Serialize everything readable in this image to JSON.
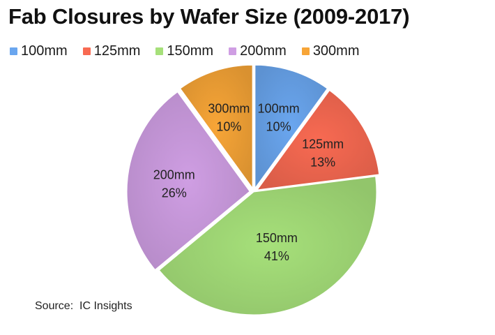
{
  "title": "Fab Closures by Wafer Size (2009-2017)",
  "source_note": "Source:  IC Insights",
  "colors": {
    "100mm": "#6aa6ef",
    "125mm": "#f86a52",
    "150mm": "#a6e07a",
    "200mm": "#cf9ee3",
    "300mm": "#f7a537"
  },
  "chart_data": {
    "type": "pie",
    "title": "Fab Closures by Wafer Size (2009-2017)",
    "legend_position": "top",
    "slices": [
      {
        "label": "100mm",
        "value": 10,
        "pct_label": "10%"
      },
      {
        "label": "125mm",
        "value": 13,
        "pct_label": "13%"
      },
      {
        "label": "150mm",
        "value": 41,
        "pct_label": "41%"
      },
      {
        "label": "200mm",
        "value": 26,
        "pct_label": "26%"
      },
      {
        "label": "300mm",
        "value": 10,
        "pct_label": "10%"
      }
    ]
  }
}
